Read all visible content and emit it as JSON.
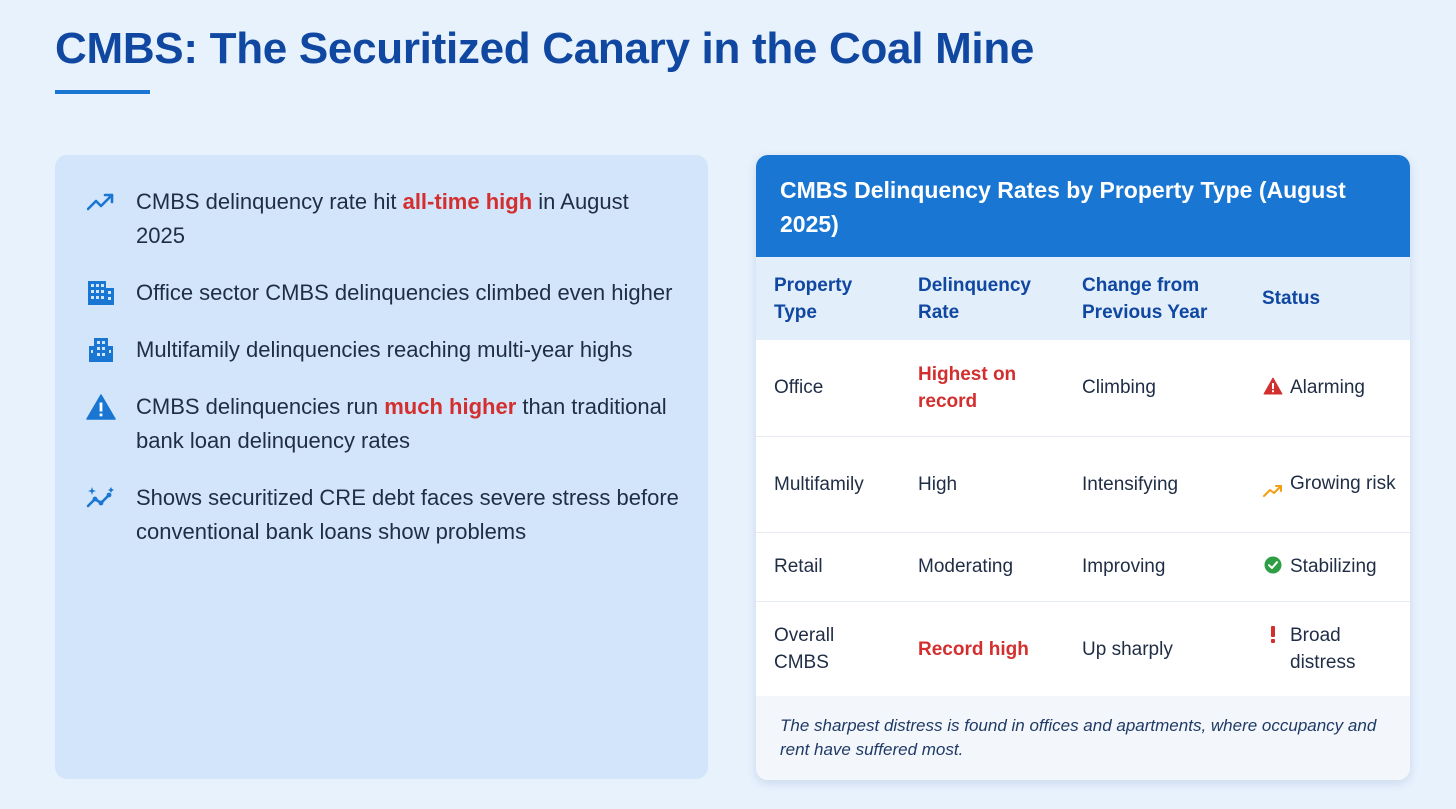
{
  "title": "CMBS: The Securitized Canary in the Coal Mine",
  "colors": {
    "accent": "#1976d2",
    "title": "#0f47a1",
    "highlight": "#d32f2f",
    "panel": "#d3e5fa"
  },
  "bullets": [
    {
      "icon": "trending-up-icon",
      "pre": "CMBS delinquency rate hit ",
      "highlight": "all-time high",
      "post": " in August 2025"
    },
    {
      "icon": "office-building-icon",
      "pre": "Office sector CMBS delinquencies climbed even higher",
      "highlight": "",
      "post": ""
    },
    {
      "icon": "apartment-building-icon",
      "pre": "Multifamily delinquencies reaching multi-year highs",
      "highlight": "",
      "post": ""
    },
    {
      "icon": "warning-icon",
      "pre": "CMBS delinquencies run ",
      "highlight": "much higher",
      "post": " than traditional bank loan delinquency rates"
    },
    {
      "icon": "sparkle-trend-icon",
      "pre": "Shows securitized CRE debt faces severe stress before conventional bank loans show problems",
      "highlight": "",
      "post": ""
    }
  ],
  "table": {
    "title": "CMBS Delinquency Rates by Property Type (August 2025)",
    "headers": [
      "Property Type",
      "Delinquency Rate",
      "Change from Previous Year",
      "Status"
    ],
    "rows": [
      {
        "type": "Office",
        "rate": "Highest on record",
        "change": "Climbing",
        "status": "Alarming",
        "status_icon": "alert-triangle-icon",
        "status_color": "#d32f2f"
      },
      {
        "type": "Multifamily",
        "rate": "High",
        "change": "Intensifying",
        "status": "Growing risk",
        "status_icon": "trending-up-icon",
        "status_color": "#f59e0b"
      },
      {
        "type": "Retail",
        "rate": "Moderating",
        "change": "Improving",
        "status": "Stabilizing",
        "status_icon": "check-circle-icon",
        "status_color": "#2e9e44"
      },
      {
        "type": "Overall CMBS",
        "rate": "Record high",
        "change": "Up sharply",
        "status": "Broad distress",
        "status_icon": "exclamation-icon",
        "status_color": "#d32f2f"
      }
    ],
    "footnote": "The sharpest distress is found in offices and apartments, where occupancy and rent have suffered most."
  }
}
